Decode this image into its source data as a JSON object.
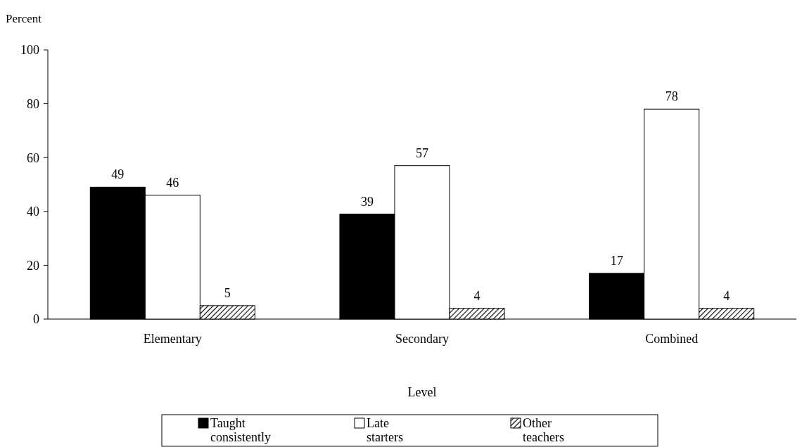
{
  "chart_data": {
    "type": "bar",
    "xlabel": "Level",
    "ylabel": "Percent",
    "categories": [
      "Elementary",
      "Secondary",
      "Combined"
    ],
    "series": [
      {
        "name": "Taught consistently",
        "color": "#000000",
        "values": [
          49,
          39,
          17
        ]
      },
      {
        "name": "Late starters",
        "color": "#ffffff",
        "values": [
          46,
          57,
          78
        ]
      },
      {
        "name": "Other teachers",
        "color": "#000000",
        "values": [
          5,
          4,
          4
        ]
      }
    ],
    "ylim": [
      0,
      100
    ],
    "yticks": [
      0,
      20,
      40,
      60,
      80,
      100
    ],
    "data_labels": true,
    "legend": "bottom",
    "grid": false
  }
}
